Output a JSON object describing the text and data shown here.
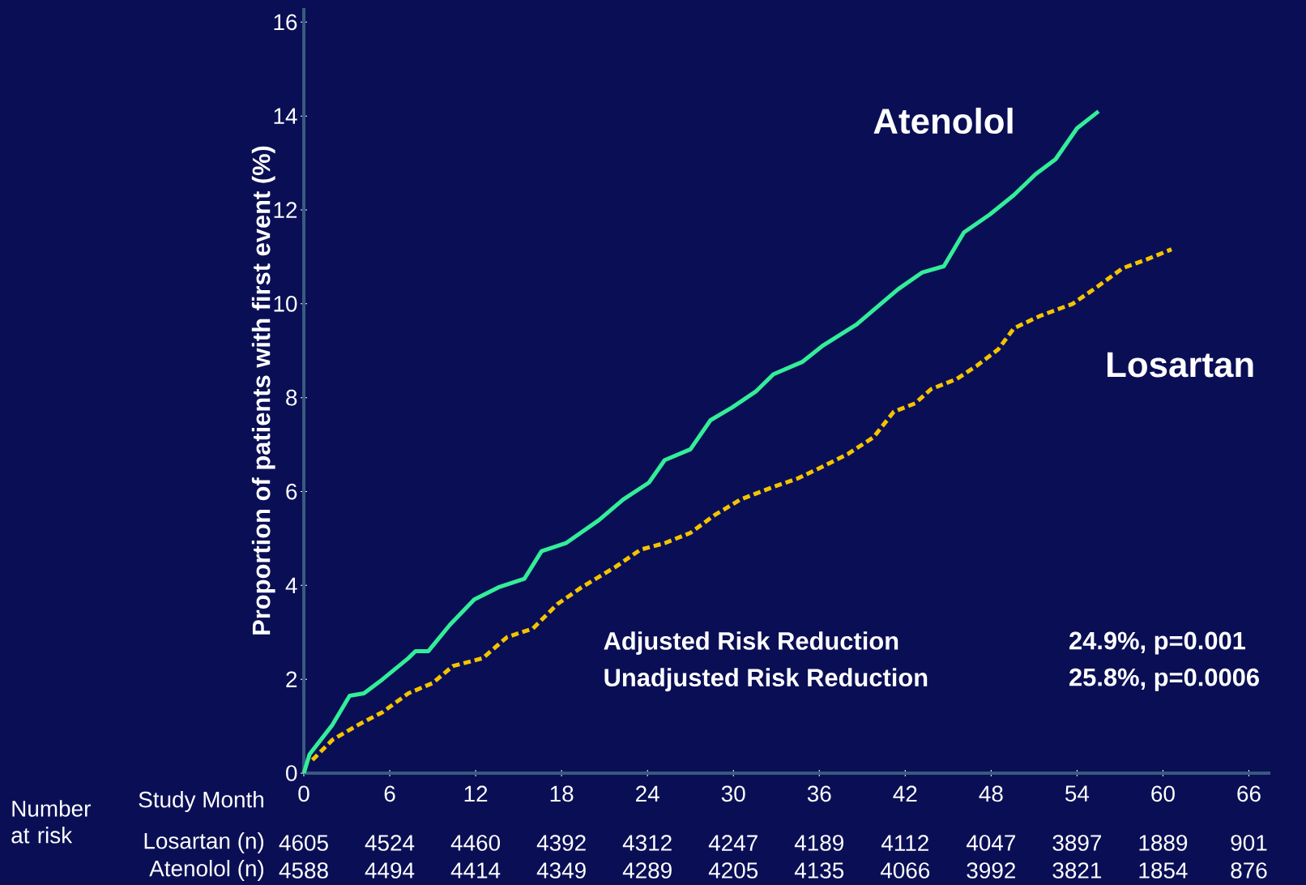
{
  "chart_data": {
    "type": "line",
    "ylabel": "Proportion of patients with first event (%)",
    "xlim": [
      0,
      67.5
    ],
    "ylim": [
      0,
      16.3
    ],
    "xticks": [
      0,
      6,
      12,
      18,
      24,
      30,
      36,
      42,
      48,
      54,
      60,
      66
    ],
    "yticks": [
      0,
      2,
      4,
      6,
      8,
      10,
      12,
      14,
      16
    ],
    "grid": false,
    "marker": "none",
    "series": [
      {
        "name": "Atenolol",
        "color": "#33ee99",
        "line_style": "solid",
        "x": [
          0,
          0.4,
          2,
          3.2,
          4.2,
          5.5,
          7.3,
          7.8,
          8.7,
          10.2,
          11.9,
          13.6,
          15.4,
          16.6,
          18.3,
          20.6,
          22.3,
          24.1,
          25.2,
          27,
          28.4,
          29.9,
          31.6,
          32.8,
          34.8,
          36.3,
          38.6,
          40.3,
          41.5,
          43.2,
          44.7,
          46.1,
          47.9,
          49.6,
          51.1,
          52.5,
          54,
          55.5
        ],
        "values": [
          0,
          0.4,
          1.03,
          1.65,
          1.7,
          2.0,
          2.45,
          2.6,
          2.6,
          3.16,
          3.7,
          3.96,
          4.14,
          4.73,
          4.9,
          5.39,
          5.83,
          6.19,
          6.67,
          6.9,
          7.52,
          7.79,
          8.14,
          8.5,
          8.76,
          9.12,
          9.56,
          10.0,
          10.31,
          10.67,
          10.8,
          11.52,
          11.9,
          12.32,
          12.76,
          13.08,
          13.74,
          14.1
        ]
      },
      {
        "name": "Losartan",
        "color": "#f5c400",
        "line_style": "dashed",
        "x": [
          0.6,
          2,
          3.8,
          5.5,
          7.3,
          9,
          10.4,
          12.5,
          14.2,
          16,
          17.7,
          19.4,
          21.8,
          23.5,
          25.2,
          27,
          28.7,
          30.5,
          32.8,
          34.5,
          36.3,
          38,
          39.8,
          41.2,
          42.7,
          43.8,
          45.6,
          47,
          48.5,
          49.6,
          51.4,
          53.7,
          55.4,
          57.2,
          58.9,
          60.6
        ],
        "values": [
          0.28,
          0.71,
          1.03,
          1.3,
          1.7,
          1.92,
          2.28,
          2.45,
          2.9,
          3.08,
          3.6,
          3.96,
          4.4,
          4.76,
          4.9,
          5.12,
          5.5,
          5.83,
          6.1,
          6.28,
          6.54,
          6.8,
          7.16,
          7.7,
          7.88,
          8.18,
          8.4,
          8.68,
          9.03,
          9.48,
          9.74,
          10.0,
          10.36,
          10.76,
          10.95,
          11.16
        ]
      }
    ],
    "annotations": [
      "Adjusted Risk Reduction",
      "24.9%, p=0.001",
      "Unadjusted Risk Reduction",
      "25.8%, p=0.0006",
      "Number at risk",
      "Study Month",
      "Losartan (n)",
      "Atenolol (n)",
      "4605",
      "4524",
      "4460",
      "4392",
      "4312",
      "4247",
      "4189",
      "4112",
      "4047",
      "3897",
      "1889",
      "901",
      "4588",
      "4494",
      "4414",
      "4349",
      "4289",
      "4205",
      "4135",
      "4066",
      "3992",
      "3821",
      "1854",
      "876"
    ]
  }
}
